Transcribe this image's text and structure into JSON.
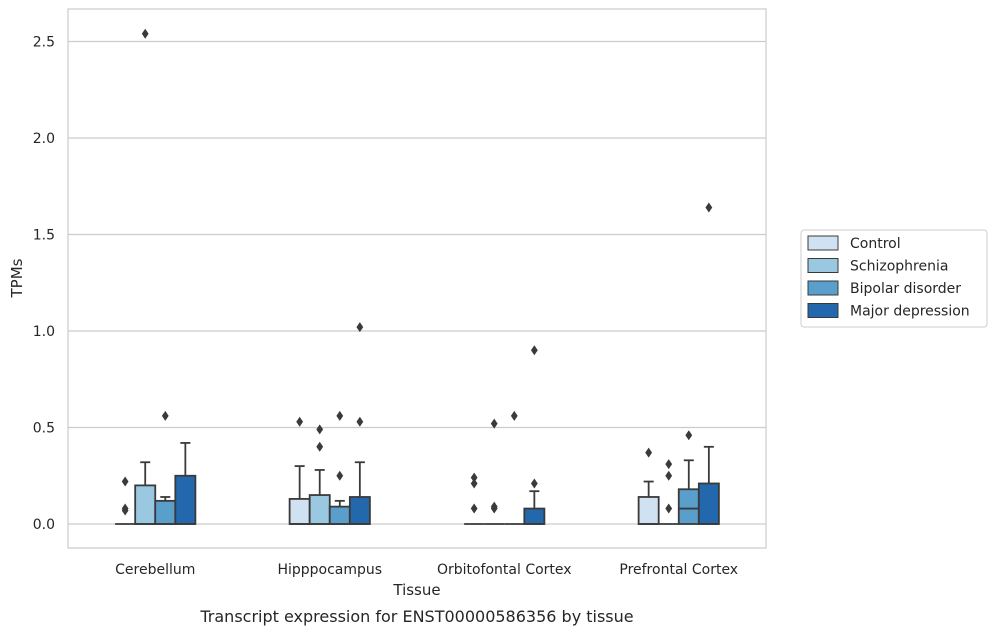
{
  "chart_data": {
    "type": "boxplot",
    "title": "",
    "caption": "Transcript expression for ENST00000586356 by tissue",
    "xlabel": "Tissue",
    "ylabel": "TPMs",
    "ylim": [
      -0.12,
      2.67
    ],
    "yticks": [
      0.0,
      0.5,
      1.0,
      1.5,
      2.0,
      2.5
    ],
    "ytick_labels": [
      "0.0",
      "0.5",
      "1.0",
      "1.5",
      "2.0",
      "2.5"
    ],
    "grid": "horizontal",
    "legend_position": "right",
    "categories": [
      "Cerebellum",
      "Hipppocampus",
      "Orbitofontal Cortex",
      "Prefrontal Cortex"
    ],
    "series": [
      {
        "name": "Control",
        "color": "#d0e1f2",
        "boxes": [
          {
            "q1": 0.0,
            "median": 0.0,
            "q3": 0.0,
            "whisker_low": 0.0,
            "whisker_high": 0.0,
            "outliers": [
              0.22,
              0.08,
              0.07
            ]
          },
          {
            "q1": 0.0,
            "median": 0.0,
            "q3": 0.13,
            "whisker_low": 0.0,
            "whisker_high": 0.3,
            "outliers": [
              0.53
            ]
          },
          {
            "q1": 0.0,
            "median": 0.0,
            "q3": 0.0,
            "whisker_low": 0.0,
            "whisker_high": 0.0,
            "outliers": [
              0.24,
              0.21,
              0.08
            ]
          },
          {
            "q1": 0.0,
            "median": 0.0,
            "q3": 0.14,
            "whisker_low": 0.0,
            "whisker_high": 0.22,
            "outliers": [
              0.37
            ]
          }
        ]
      },
      {
        "name": "Schizophrenia",
        "color": "#9ac8e0",
        "boxes": [
          {
            "q1": 0.0,
            "median": 0.0,
            "q3": 0.2,
            "whisker_low": 0.0,
            "whisker_high": 0.32,
            "outliers": [
              2.54
            ]
          },
          {
            "q1": 0.0,
            "median": 0.0,
            "q3": 0.15,
            "whisker_low": 0.0,
            "whisker_high": 0.28,
            "outliers": [
              0.49,
              0.4
            ]
          },
          {
            "q1": 0.0,
            "median": 0.0,
            "q3": 0.0,
            "whisker_low": 0.0,
            "whisker_high": 0.0,
            "outliers": [
              0.52,
              0.09,
              0.08
            ]
          },
          {
            "q1": 0.0,
            "median": 0.0,
            "q3": 0.0,
            "whisker_low": 0.0,
            "whisker_high": 0.0,
            "outliers": [
              0.31,
              0.25,
              0.08
            ]
          }
        ]
      },
      {
        "name": "Bipolar disorder",
        "color": "#5a9fcb",
        "boxes": [
          {
            "q1": 0.0,
            "median": 0.0,
            "q3": 0.12,
            "whisker_low": 0.0,
            "whisker_high": 0.14,
            "outliers": [
              0.56
            ]
          },
          {
            "q1": 0.0,
            "median": 0.0,
            "q3": 0.09,
            "whisker_low": 0.0,
            "whisker_high": 0.12,
            "outliers": [
              0.56,
              0.25
            ]
          },
          {
            "q1": 0.0,
            "median": 0.0,
            "q3": 0.0,
            "whisker_low": 0.0,
            "whisker_high": 0.0,
            "outliers": [
              0.56
            ]
          },
          {
            "q1": 0.0,
            "median": 0.08,
            "q3": 0.18,
            "whisker_low": 0.0,
            "whisker_high": 0.33,
            "outliers": [
              0.46
            ]
          }
        ]
      },
      {
        "name": "Major depression",
        "color": "#2367ac",
        "boxes": [
          {
            "q1": 0.0,
            "median": 0.0,
            "q3": 0.25,
            "whisker_low": 0.0,
            "whisker_high": 0.42,
            "outliers": []
          },
          {
            "q1": 0.0,
            "median": 0.0,
            "q3": 0.14,
            "whisker_low": 0.0,
            "whisker_high": 0.32,
            "outliers": [
              1.02,
              0.53
            ]
          },
          {
            "q1": 0.0,
            "median": 0.0,
            "q3": 0.08,
            "whisker_low": 0.0,
            "whisker_high": 0.17,
            "outliers": [
              0.9,
              0.21
            ]
          },
          {
            "q1": 0.0,
            "median": 0.0,
            "q3": 0.21,
            "whisker_low": 0.0,
            "whisker_high": 0.4,
            "outliers": [
              1.64
            ]
          }
        ]
      }
    ]
  }
}
